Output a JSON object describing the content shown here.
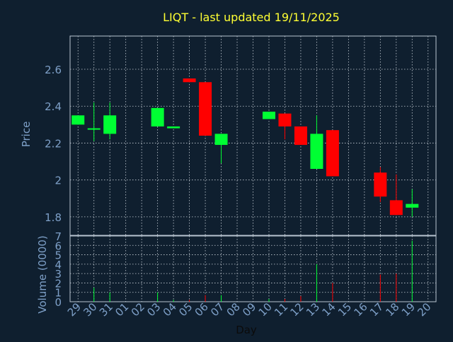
{
  "chart_data": {
    "type": "candlestick",
    "title": "LIQT - last updated 19/11/2025",
    "xlabel": "Day",
    "price_panel": {
      "ylabel": "Price",
      "ylim": [
        1.7,
        2.78
      ],
      "yticks": [
        1.8,
        2.0,
        2.2,
        2.4,
        2.6
      ],
      "ytick_labels": [
        "1.8",
        "2",
        "2.2",
        "2.4",
        "2.6"
      ],
      "grid": true
    },
    "volume_panel": {
      "ylabel": "Volume (0000)",
      "ylim": [
        0,
        7
      ],
      "yticks": [
        0,
        1,
        2,
        3,
        4,
        5,
        6,
        7
      ],
      "ytick_labels": [
        "0",
        "1",
        "2",
        "3",
        "4",
        "5",
        "6",
        "7"
      ],
      "grid": true
    },
    "x_tick_labels": [
      "29",
      "30",
      "31",
      "01",
      "02",
      "03",
      "04",
      "05",
      "06",
      "07",
      "08",
      "09",
      "10",
      "11",
      "12",
      "13",
      "14",
      "15",
      "16",
      "17",
      "18",
      "19",
      "20"
    ],
    "candles": [
      {
        "day": "29",
        "open": 2.3,
        "high": 2.35,
        "low": 2.3,
        "close": 2.35,
        "volume": 0.0
      },
      {
        "day": "30",
        "open": 2.28,
        "high": 2.42,
        "low": 2.21,
        "close": 2.28,
        "volume": 1.5
      },
      {
        "day": "31",
        "open": 2.25,
        "high": 2.42,
        "low": 2.22,
        "close": 2.35,
        "volume": 1.0
      },
      {
        "day": "03",
        "open": 2.29,
        "high": 2.39,
        "low": 2.29,
        "close": 2.39,
        "volume": 1.0
      },
      {
        "day": "04",
        "open": 2.28,
        "high": 2.29,
        "low": 2.28,
        "close": 2.29,
        "volume": 0.2
      },
      {
        "day": "05",
        "open": 2.55,
        "high": 2.55,
        "low": 2.53,
        "close": 2.53,
        "volume": 0.2
      },
      {
        "day": "06",
        "open": 2.53,
        "high": 2.53,
        "low": 2.24,
        "close": 2.24,
        "volume": 0.7
      },
      {
        "day": "07",
        "open": 2.19,
        "high": 2.25,
        "low": 2.09,
        "close": 2.25,
        "volume": 0.7
      },
      {
        "day": "10",
        "open": 2.33,
        "high": 2.37,
        "low": 2.33,
        "close": 2.37,
        "volume": 0.3
      },
      {
        "day": "11",
        "open": 2.36,
        "high": 2.36,
        "low": 2.22,
        "close": 2.29,
        "volume": 0.3
      },
      {
        "day": "12",
        "open": 2.29,
        "high": 2.29,
        "low": 2.19,
        "close": 2.19,
        "volume": 0.6
      },
      {
        "day": "13",
        "open": 2.06,
        "high": 2.35,
        "low": 2.06,
        "close": 2.25,
        "volume": 4.0
      },
      {
        "day": "14",
        "open": 2.27,
        "high": 2.27,
        "low": 2.02,
        "close": 2.02,
        "volume": 2.0
      },
      {
        "day": "17",
        "open": 2.04,
        "high": 2.07,
        "low": 1.88,
        "close": 1.91,
        "volume": 2.9
      },
      {
        "day": "18",
        "open": 1.89,
        "high": 2.03,
        "low": 1.81,
        "close": 1.81,
        "volume": 3.0
      },
      {
        "day": "19",
        "open": 1.85,
        "high": 1.95,
        "low": 1.8,
        "close": 1.87,
        "volume": 6.5
      }
    ],
    "colors": {
      "background": "#0f1f2f",
      "plot_border": "#b8c4d0",
      "grid": "#c8d0d8",
      "up": "#00ff33",
      "down": "#ff0000",
      "title": "#ffff33",
      "axis_text": "#7ea0c8",
      "xlabel_text": "#0b0b0b"
    }
  }
}
